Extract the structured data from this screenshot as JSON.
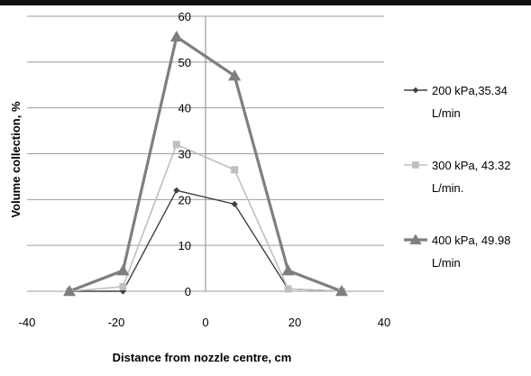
{
  "chart_data": {
    "type": "scatter",
    "title": "",
    "xlabel": "Distance from nozzle centre, cm",
    "ylabel": "Volume collection, %",
    "xlim": [
      -40,
      40
    ],
    "ylim": [
      0,
      60
    ],
    "x_ticks": [
      "-40",
      "-20",
      "0",
      "20",
      "40"
    ],
    "y_ticks": [
      "0",
      "10",
      "20",
      "30",
      "40",
      "50",
      "60"
    ],
    "grid": "horizontal",
    "legend_position": "right",
    "series": [
      {
        "name_lines": [
          "200 kPa,35.34",
          "L/min"
        ],
        "color": "#404040",
        "marker": "diamond",
        "x": [
          -30.5,
          -18.5,
          -6.5,
          6.5,
          18.5,
          30.5
        ],
        "y": [
          0,
          0,
          22,
          19,
          0.5,
          0
        ]
      },
      {
        "name_lines": [
          "300 kPa, 43.32",
          "L/min."
        ],
        "color": "#bfbfbf",
        "marker": "square",
        "x": [
          -30.5,
          -18.5,
          -6.5,
          6.5,
          18.5,
          30.5
        ],
        "y": [
          0,
          1,
          32,
          26.5,
          0.5,
          0
        ]
      },
      {
        "name_lines": [
          "400 kPa, 49.98",
          "L/min"
        ],
        "color": "#7f7f7f",
        "marker": "triangle",
        "x": [
          -30.5,
          -18.5,
          -6.5,
          6.5,
          18.5,
          30.5
        ],
        "y": [
          0,
          4.5,
          55.5,
          47,
          4.5,
          0
        ]
      }
    ]
  }
}
